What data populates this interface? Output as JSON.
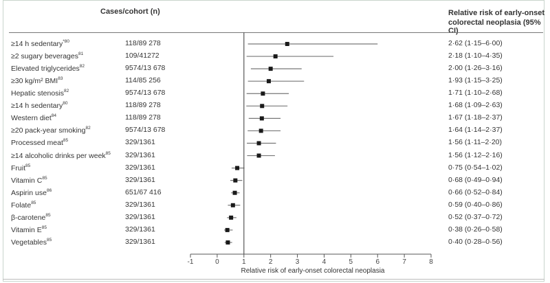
{
  "headers": {
    "cases": "Cases/cohort (n)",
    "rr_line1": "Relative risk of early-onset",
    "rr_line2": "colorectal neoplasia (95% CI)"
  },
  "chart_data": {
    "type": "forest",
    "xlabel": "Relative risk of early-onset colorectal neoplasia",
    "xlim": [
      -1,
      8
    ],
    "xticks": [
      "-1",
      "0",
      "1",
      "2",
      "3",
      "4",
      "5",
      "6",
      "7",
      "8"
    ],
    "reference_line": 1,
    "rows": [
      {
        "label": "≥14 h sedentary",
        "ref": "*80",
        "cases": "118/89 278",
        "rr": 2.62,
        "lo": 1.15,
        "hi": 6.0,
        "text": "2·62 (1·15–6·00)"
      },
      {
        "label": "≥2 sugary beverages",
        "ref": "81",
        "cases": "109/41272",
        "rr": 2.18,
        "lo": 1.1,
        "hi": 4.35,
        "text": "2·18 (1·10–4·35)"
      },
      {
        "label": "Elevated triglycerides",
        "ref": "82",
        "cases": "9574/13 678",
        "rr": 2.0,
        "lo": 1.26,
        "hi": 3.16,
        "text": "2·00 (1·26–3·16)"
      },
      {
        "label": "≥30 kg/m² BMI",
        "ref": "83",
        "cases": "114/85 256",
        "rr": 1.93,
        "lo": 1.15,
        "hi": 3.25,
        "text": "1·93 (1·15–3·25)"
      },
      {
        "label": "Hepatic stenosis",
        "ref": "82",
        "cases": "9574/13 678",
        "rr": 1.71,
        "lo": 1.1,
        "hi": 2.68,
        "text": "1·71 (1·10–2·68)"
      },
      {
        "label": "≥14 h sedentary",
        "ref": "80",
        "cases": "118/89 278",
        "rr": 1.68,
        "lo": 1.09,
        "hi": 2.63,
        "text": "1·68 (1·09–2·63)"
      },
      {
        "label": "Western diet",
        "ref": "84",
        "cases": "118/89 278",
        "rr": 1.67,
        "lo": 1.18,
        "hi": 2.37,
        "text": "1·67 (1·18–2·37)"
      },
      {
        "label": "≥20 pack-year smoking",
        "ref": "82",
        "cases": "9574/13 678",
        "rr": 1.64,
        "lo": 1.14,
        "hi": 2.37,
        "text": "1·64 (1·14–2·37)"
      },
      {
        "label": "Processed meat",
        "ref": "85",
        "cases": "329/1361",
        "rr": 1.56,
        "lo": 1.11,
        "hi": 2.2,
        "text": "1·56 (1·11–2·20)"
      },
      {
        "label": "≥14 alcoholic drinks per week",
        "ref": "85",
        "cases": "329/1361",
        "rr": 1.56,
        "lo": 1.12,
        "hi": 2.16,
        "text": "1·56 (1·12–2·16)"
      },
      {
        "label": "Fruit",
        "ref": "85",
        "cases": "329/1361",
        "rr": 0.75,
        "lo": 0.54,
        "hi": 1.02,
        "text": "0·75 (0·54–1·02)"
      },
      {
        "label": "Vitamin C",
        "ref": "85",
        "cases": "329/1361",
        "rr": 0.68,
        "lo": 0.49,
        "hi": 0.94,
        "text": "0·68 (0·49–0·94)"
      },
      {
        "label": "Aspirin use",
        "ref": "86",
        "cases": "651/67 416",
        "rr": 0.66,
        "lo": 0.52,
        "hi": 0.84,
        "text": "0·66 (0·52–0·84)"
      },
      {
        "label": "Folate",
        "ref": "85",
        "cases": "329/1361",
        "rr": 0.59,
        "lo": 0.4,
        "hi": 0.86,
        "text": "0·59 (0·40–0·86)"
      },
      {
        "label": "β-carotene",
        "ref": "85",
        "cases": "329/1361",
        "rr": 0.52,
        "lo": 0.37,
        "hi": 0.72,
        "text": "0·52 (0·37–0·72)"
      },
      {
        "label": "Vitamin E",
        "ref": "85",
        "cases": "329/1361",
        "rr": 0.38,
        "lo": 0.26,
        "hi": 0.58,
        "text": "0·38 (0·26–0·58)"
      },
      {
        "label": "Vegetables",
        "ref": "85",
        "cases": "329/1361",
        "rr": 0.4,
        "lo": 0.28,
        "hi": 0.56,
        "text": "0·40 (0·28–0·56)"
      }
    ],
    "colors": {
      "marker": "#1a1a1a",
      "whisker": "#777777",
      "axis": "#555555"
    }
  }
}
